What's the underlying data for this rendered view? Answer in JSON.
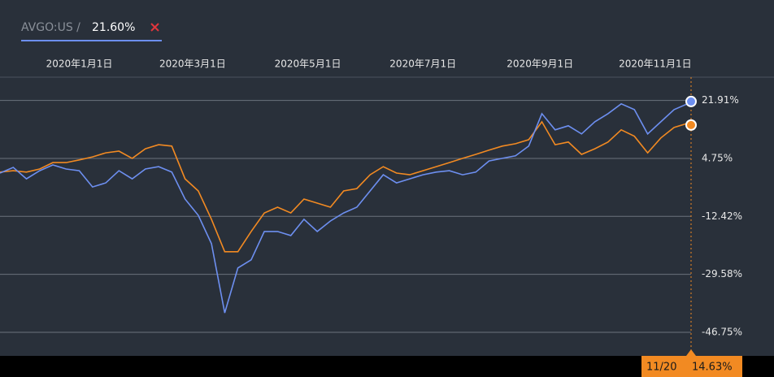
{
  "legend": {
    "ticker": "AVGO:US /",
    "value": "21.60%"
  },
  "chart_data": {
    "type": "line",
    "x": [
      "2019-11-20",
      "2019-11-27",
      "2019-12-04",
      "2019-12-11",
      "2019-12-18",
      "2019-12-25",
      "2020-01-01",
      "2020-01-08",
      "2020-01-15",
      "2020-01-22",
      "2020-01-29",
      "2020-02-05",
      "2020-02-12",
      "2020-02-19",
      "2020-02-26",
      "2020-03-04",
      "2020-03-11",
      "2020-03-18",
      "2020-03-25",
      "2020-04-01",
      "2020-04-08",
      "2020-04-15",
      "2020-04-22",
      "2020-04-29",
      "2020-05-06",
      "2020-05-13",
      "2020-05-20",
      "2020-05-27",
      "2020-06-03",
      "2020-06-10",
      "2020-06-17",
      "2020-06-24",
      "2020-07-01",
      "2020-07-08",
      "2020-07-15",
      "2020-07-22",
      "2020-07-29",
      "2020-08-05",
      "2020-08-12",
      "2020-08-19",
      "2020-08-26",
      "2020-09-02",
      "2020-09-09",
      "2020-09-16",
      "2020-09-23",
      "2020-09-30",
      "2020-10-07",
      "2020-10-14",
      "2020-10-21",
      "2020-10-28",
      "2020-11-04",
      "2020-11-11",
      "2020-11-18",
      "2020-11-20"
    ],
    "series": [
      {
        "name": "AVGO:US",
        "color": "#6d8ff0",
        "values": [
          0.4,
          2.1,
          -1.3,
          1.1,
          2.8,
          1.6,
          1.1,
          -3.7,
          -2.5,
          1.1,
          -1.3,
          1.6,
          2.3,
          0.7,
          -7.3,
          -12.1,
          -20.5,
          -41.0,
          -27.7,
          -25.3,
          -16.9,
          -16.9,
          -18.1,
          -13.3,
          -16.9,
          -13.8,
          -11.4,
          -9.7,
          -4.9,
          -0.1,
          -2.5,
          -1.3,
          -0.1,
          0.7,
          1.1,
          -0.1,
          0.7,
          4.0,
          4.75,
          5.5,
          8.4,
          18.0,
          13.2,
          14.4,
          12.0,
          15.6,
          18.0,
          20.9,
          19.2,
          12.0,
          15.6,
          19.2,
          20.9,
          21.6
        ]
      },
      {
        "color": "#f28a22",
        "values": [
          0.7,
          1.1,
          0.7,
          1.6,
          3.5,
          3.5,
          4.3,
          5.2,
          6.4,
          6.9,
          4.75,
          7.6,
          8.8,
          8.4,
          -1.3,
          -4.9,
          -13.3,
          -22.9,
          -22.9,
          -16.9,
          -11.4,
          -9.7,
          -11.4,
          -7.3,
          -8.5,
          -9.7,
          -4.9,
          -4.2,
          -0.1,
          2.3,
          0.4,
          -0.1,
          1.1,
          2.3,
          3.5,
          4.75,
          5.95,
          7.2,
          8.4,
          9.1,
          10.3,
          15.6,
          8.8,
          9.6,
          5.95,
          7.6,
          9.6,
          13.2,
          11.3,
          6.4,
          10.8,
          13.9,
          15.1,
          14.63
        ]
      }
    ],
    "xlim": [
      "2019-11-20",
      "2020-11-20"
    ],
    "xticks": [
      {
        "value": "2020-01-01",
        "label": "2020年1月1日"
      },
      {
        "value": "2020-03-01",
        "label": "2020年3月1日"
      },
      {
        "value": "2020-05-01",
        "label": "2020年5月1日"
      },
      {
        "value": "2020-07-01",
        "label": "2020年7月1日"
      },
      {
        "value": "2020-09-01",
        "label": "2020年9月1日"
      },
      {
        "value": "2020-11-01",
        "label": "2020年11月1日"
      }
    ],
    "ylim": [
      -53.5,
      28.8
    ],
    "yticks": [
      {
        "value": 21.91,
        "label": "21.91%"
      },
      {
        "value": 4.75,
        "label": "4.75%"
      },
      {
        "value": -12.42,
        "label": "-12.42%"
      },
      {
        "value": -29.58,
        "label": "-29.58%"
      },
      {
        "value": -46.75,
        "label": "-46.75%"
      }
    ],
    "grid": true
  },
  "hover": {
    "date": "11/20",
    "value": "14.63%"
  }
}
